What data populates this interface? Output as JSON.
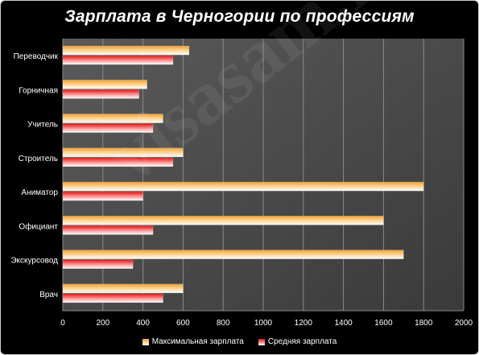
{
  "watermark": "visasam.ru",
  "chart_data": {
    "type": "bar",
    "orientation": "horizontal",
    "title": "Зарплата в Черногории по профессиям",
    "xlabel": "",
    "ylabel": "",
    "xlim": [
      0,
      2000
    ],
    "x_ticks": [
      "0",
      "200",
      "400",
      "600",
      "800",
      "1000",
      "1200",
      "1400",
      "1600",
      "1800",
      "2000"
    ],
    "grid": true,
    "legend_position": "bottom",
    "categories": [
      "Переводчик",
      "Горничная",
      "Учитель",
      "Строитель",
      "Аниматор",
      "Официант",
      "Экскурсовод",
      "Врач"
    ],
    "series": [
      {
        "name": "Максимальная зарплата",
        "color": "#f2a030",
        "values": [
          630,
          420,
          500,
          600,
          1800,
          1600,
          1700,
          600
        ]
      },
      {
        "name": "Средняя зарплата",
        "color": "#e01010",
        "values": [
          550,
          380,
          450,
          550,
          400,
          450,
          350,
          500
        ]
      }
    ]
  }
}
